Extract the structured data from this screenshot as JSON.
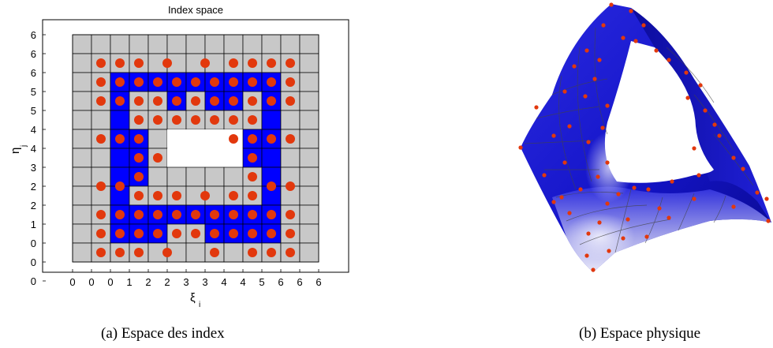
{
  "panel_a": {
    "title": "Index space",
    "xlabel": "ξ",
    "xlabel_sub": "i",
    "ylabel": "η",
    "ylabel_sub": "j",
    "x_tick_labels": [
      "0",
      "0",
      "0",
      "1",
      "2",
      "2",
      "3",
      "3",
      "4",
      "4",
      "5",
      "6",
      "6",
      "6"
    ],
    "y_tick_labels": [
      "6",
      "6",
      "6",
      "5",
      "5",
      "4",
      "4",
      "3",
      "2",
      "2",
      "1",
      "0",
      "0",
      "0"
    ],
    "caption": "(a) Espace des index",
    "colors": {
      "padding": "#c8c8c8",
      "active": "#0000ff",
      "hole": "#ffffff",
      "point": "#e2380d",
      "grid": "#000000"
    },
    "grid": {
      "cols": 13,
      "rows": 12,
      "cells": [
        "ggggggggggggg",
        "ggggggggggggg",
        "ggbbbbbbbbbgg",
        "ggbggbgbbgbgg",
        "ggbgggggggbgg",
        "ggbbgwwwwbbgg",
        "ggbbgwwwwbbgg",
        "ggbbggggggbgg",
        "ggbgggggggbgg",
        "ggbbbbbbbbbgg",
        "ggbbbggbbbbgg",
        "ggggggggggggg"
      ],
      "points": [
        [
          1,
          1
        ],
        [
          2,
          1
        ],
        [
          3,
          1
        ],
        [
          4.5,
          1
        ],
        [
          6.5,
          1
        ],
        [
          8,
          1
        ],
        [
          9,
          1
        ],
        [
          10,
          1
        ],
        [
          11,
          1
        ],
        [
          1,
          2
        ],
        [
          2,
          2
        ],
        [
          3,
          2
        ],
        [
          4,
          2
        ],
        [
          5,
          2
        ],
        [
          6,
          2
        ],
        [
          7,
          2
        ],
        [
          8,
          2
        ],
        [
          9,
          2
        ],
        [
          10,
          2
        ],
        [
          11,
          2
        ],
        [
          1,
          3
        ],
        [
          2,
          3
        ],
        [
          3,
          3
        ],
        [
          4,
          3
        ],
        [
          5,
          3
        ],
        [
          6,
          3
        ],
        [
          7,
          3
        ],
        [
          8,
          3
        ],
        [
          9,
          3
        ],
        [
          10,
          3
        ],
        [
          11,
          3
        ],
        [
          3,
          4
        ],
        [
          4,
          4
        ],
        [
          5,
          4
        ],
        [
          6,
          4
        ],
        [
          7,
          4
        ],
        [
          8,
          4
        ],
        [
          9,
          4
        ],
        [
          1,
          5
        ],
        [
          2,
          5
        ],
        [
          3,
          5
        ],
        [
          8,
          5
        ],
        [
          9,
          5
        ],
        [
          10,
          5
        ],
        [
          11,
          5
        ],
        [
          3,
          6
        ],
        [
          4,
          6
        ],
        [
          9,
          6
        ],
        [
          1,
          7.5
        ],
        [
          2,
          7.5
        ],
        [
          3,
          7
        ],
        [
          9,
          7
        ],
        [
          10,
          7.5
        ],
        [
          11,
          7.5
        ],
        [
          3,
          8
        ],
        [
          4,
          8
        ],
        [
          5,
          8
        ],
        [
          6.5,
          8
        ],
        [
          8,
          8
        ],
        [
          9,
          8
        ],
        [
          1,
          9
        ],
        [
          2,
          9
        ],
        [
          3,
          9
        ],
        [
          4,
          9
        ],
        [
          5,
          9
        ],
        [
          6,
          9
        ],
        [
          7,
          9
        ],
        [
          8,
          9
        ],
        [
          9,
          9
        ],
        [
          10,
          9
        ],
        [
          11,
          9
        ],
        [
          1,
          10
        ],
        [
          2,
          10
        ],
        [
          3,
          10
        ],
        [
          4,
          10
        ],
        [
          5,
          10
        ],
        [
          6,
          10
        ],
        [
          7,
          10
        ],
        [
          8,
          10
        ],
        [
          9,
          10
        ],
        [
          10,
          10
        ],
        [
          11,
          10
        ],
        [
          1,
          11
        ],
        [
          2,
          11
        ],
        [
          3,
          11
        ],
        [
          4.5,
          11
        ],
        [
          7,
          11
        ],
        [
          9,
          11
        ],
        [
          10,
          11
        ],
        [
          11,
          11
        ]
      ]
    }
  },
  "panel_b": {
    "caption": "(b) Espace physique",
    "colors": {
      "surface_dark": "#0a0a8a",
      "surface_mid": "#1c1cd6",
      "surface_light": "#ffffff",
      "point": "#e2380d",
      "mesh": "#555555"
    }
  }
}
